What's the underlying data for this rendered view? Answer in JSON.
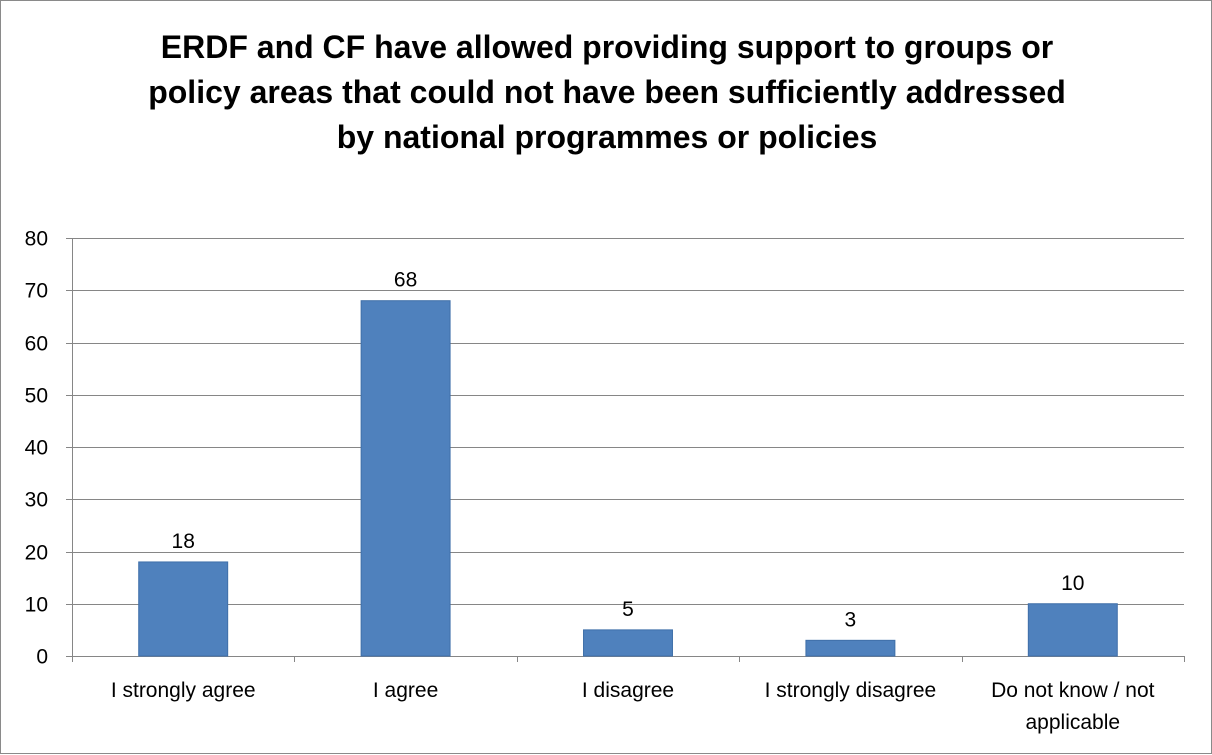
{
  "chart_data": {
    "type": "bar",
    "title": "ERDF and CF have allowed providing support to groups or policy areas that could not have been sufficiently addressed by national programmes or policies",
    "title_lines": [
      "ERDF and CF have allowed providing support to groups or",
      "policy areas that could not have been sufficiently addressed",
      "by national programmes or policies"
    ],
    "categories": [
      "I strongly agree",
      "I agree",
      "I disagree",
      "I strongly disagree",
      "Do not know / not applicable"
    ],
    "category_label_lines": [
      [
        "I strongly agree"
      ],
      [
        "I agree"
      ],
      [
        "I disagree"
      ],
      [
        "I strongly disagree"
      ],
      [
        "Do not know / not",
        "applicable"
      ]
    ],
    "values": [
      18,
      68,
      5,
      3,
      10
    ],
    "data_labels": [
      "18",
      "68",
      "5",
      "3",
      "10"
    ],
    "xlabel": "",
    "ylabel": "",
    "ylim": [
      0,
      80
    ],
    "yticks": [
      0,
      10,
      20,
      30,
      40,
      50,
      60,
      70,
      80
    ],
    "ytick_labels": [
      "0",
      "10",
      "20",
      "30",
      "40",
      "50",
      "60",
      "70",
      "80"
    ],
    "grid": true,
    "legend": "none",
    "colors": {
      "bar": "#4f81bd",
      "bar_stroke": "#3f6fa9",
      "gridline": "#868686",
      "axis": "#868686",
      "text": "#000000",
      "border": "#8a8a8a"
    }
  }
}
